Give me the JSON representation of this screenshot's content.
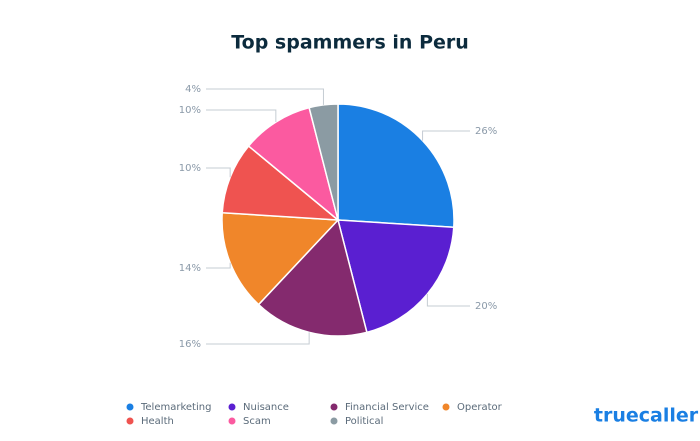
{
  "chart_data": {
    "type": "pie",
    "title": "Top spammers in Peru",
    "categories": [
      "Telemarketing",
      "Nuisance",
      "Financial Service",
      "Operator",
      "Health",
      "Scam",
      "Political"
    ],
    "values": [
      26,
      20,
      16,
      14,
      10,
      10,
      4
    ],
    "value_labels": [
      "26%",
      "20%",
      "16%",
      "14%",
      "10%",
      "10%",
      "4%"
    ],
    "colors": [
      "#1a7fe3",
      "#5a1fd1",
      "#842a6e",
      "#f0862a",
      "#ef5350",
      "#fb5aa0",
      "#8b9ba3"
    ],
    "legend": "bottom",
    "logo": "truecaller"
  }
}
